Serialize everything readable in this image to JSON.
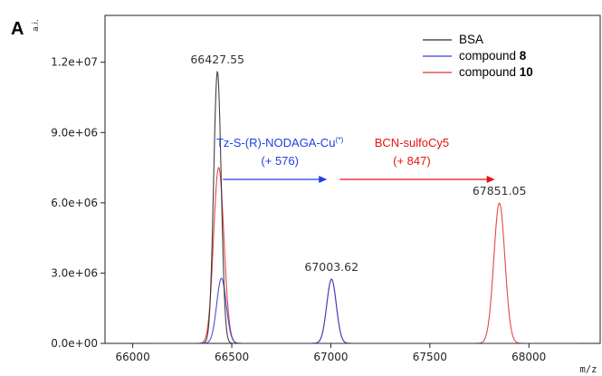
{
  "panel_label": "A",
  "colors": {
    "bsa": "#2b2b2b",
    "compound8": "#3a3ad9",
    "compound10": "#e03434",
    "arrow_blue": "#1f3fe0",
    "arrow_red": "#e81212"
  },
  "chart_data": {
    "type": "line",
    "xlabel": "m/z",
    "ylabel": "a.i.",
    "xlim": [
      65860,
      68360
    ],
    "ylim": [
      0,
      14000000
    ],
    "x_ticks": [
      66000,
      66500,
      67000,
      67500,
      68000
    ],
    "y_ticks": [
      0,
      3000000,
      6000000,
      9000000,
      12000000
    ],
    "x_tick_labels": [
      "66000",
      "66500",
      "67000",
      "67500",
      "68000"
    ],
    "y_tick_labels": [
      "0.0e+00",
      "3.0e+06",
      "6.0e+06",
      "9.0e+06",
      "1.2e+07"
    ],
    "legend": {
      "position": "top-right",
      "entries": [
        {
          "name": "BSA",
          "bold": ""
        },
        {
          "name": "compound ",
          "bold": "8"
        },
        {
          "name": "compound ",
          "bold": "10"
        }
      ]
    },
    "series": [
      {
        "name": "BSA",
        "peaks": [
          {
            "x": 66427.55,
            "height": 11600000,
            "sigma": 19
          }
        ]
      },
      {
        "name": "compound 8",
        "peaks": [
          {
            "x": 66448,
            "height": 2780000,
            "sigma": 24
          },
          {
            "x": 67003.62,
            "height": 2740000,
            "sigma": 24
          }
        ]
      },
      {
        "name": "compound 10",
        "peaks": [
          {
            "x": 66427.55,
            "height": 5350000,
            "sigma": 24
          },
          {
            "x": 66448,
            "height": 2780000,
            "sigma": 24
          },
          {
            "x": 67003.62,
            "height": 2740000,
            "sigma": 24
          },
          {
            "x": 67851.05,
            "height": 5990000,
            "sigma": 28
          }
        ]
      }
    ],
    "peak_labels": [
      {
        "text": "66427.55",
        "x": 66427.55,
        "y": 11600000
      },
      {
        "text": "67003.62",
        "x": 67003.62,
        "y": 2740000
      },
      {
        "text": "67851.05",
        "x": 67851.05,
        "y": 5990000
      }
    ],
    "annotations": [
      {
        "line1": "Tz-S-(R)-NODAGA-Cu",
        "sup": "(*)",
        "line2": "(+ 576)",
        "color": "blue",
        "arrow_from": 66427.55,
        "arrow_to": 67003.62,
        "arrow_y": 7000000
      },
      {
        "line1": "BCN-sulfoCy5",
        "sup": "",
        "line2": "(+ 847)",
        "color": "red",
        "arrow_from": 67003.62,
        "arrow_to": 67851.05,
        "arrow_y": 7000000
      }
    ]
  }
}
